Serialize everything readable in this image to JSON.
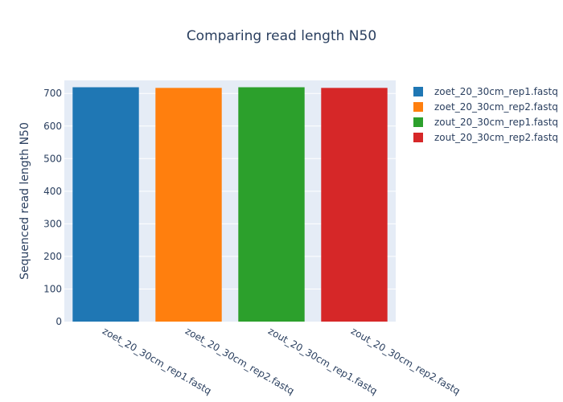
{
  "chart_data": {
    "type": "bar",
    "title": "Comparing read length N50",
    "xlabel": "",
    "ylabel": "Sequenced read length N50",
    "categories": [
      "zoet_20_30cm_rep1.fastq",
      "zoet_20_30cm_rep2.fastq",
      "zout_20_30cm_rep1.fastq",
      "zout_20_30cm_rep2.fastq"
    ],
    "values": [
      719,
      717,
      719,
      717
    ],
    "colors": [
      "#1f77b4",
      "#ff7f0e",
      "#2ca02c",
      "#d62728"
    ],
    "ylim": [
      0,
      740
    ],
    "yticks": [
      0,
      100,
      200,
      300,
      400,
      500,
      600,
      700
    ],
    "grid": true,
    "legend": {
      "position": "right",
      "entries": [
        "zoet_20_30cm_rep1.fastq",
        "zoet_20_30cm_rep2.fastq",
        "zout_20_30cm_rep1.fastq",
        "zout_20_30cm_rep2.fastq"
      ]
    },
    "background": "#e5ecf6"
  }
}
